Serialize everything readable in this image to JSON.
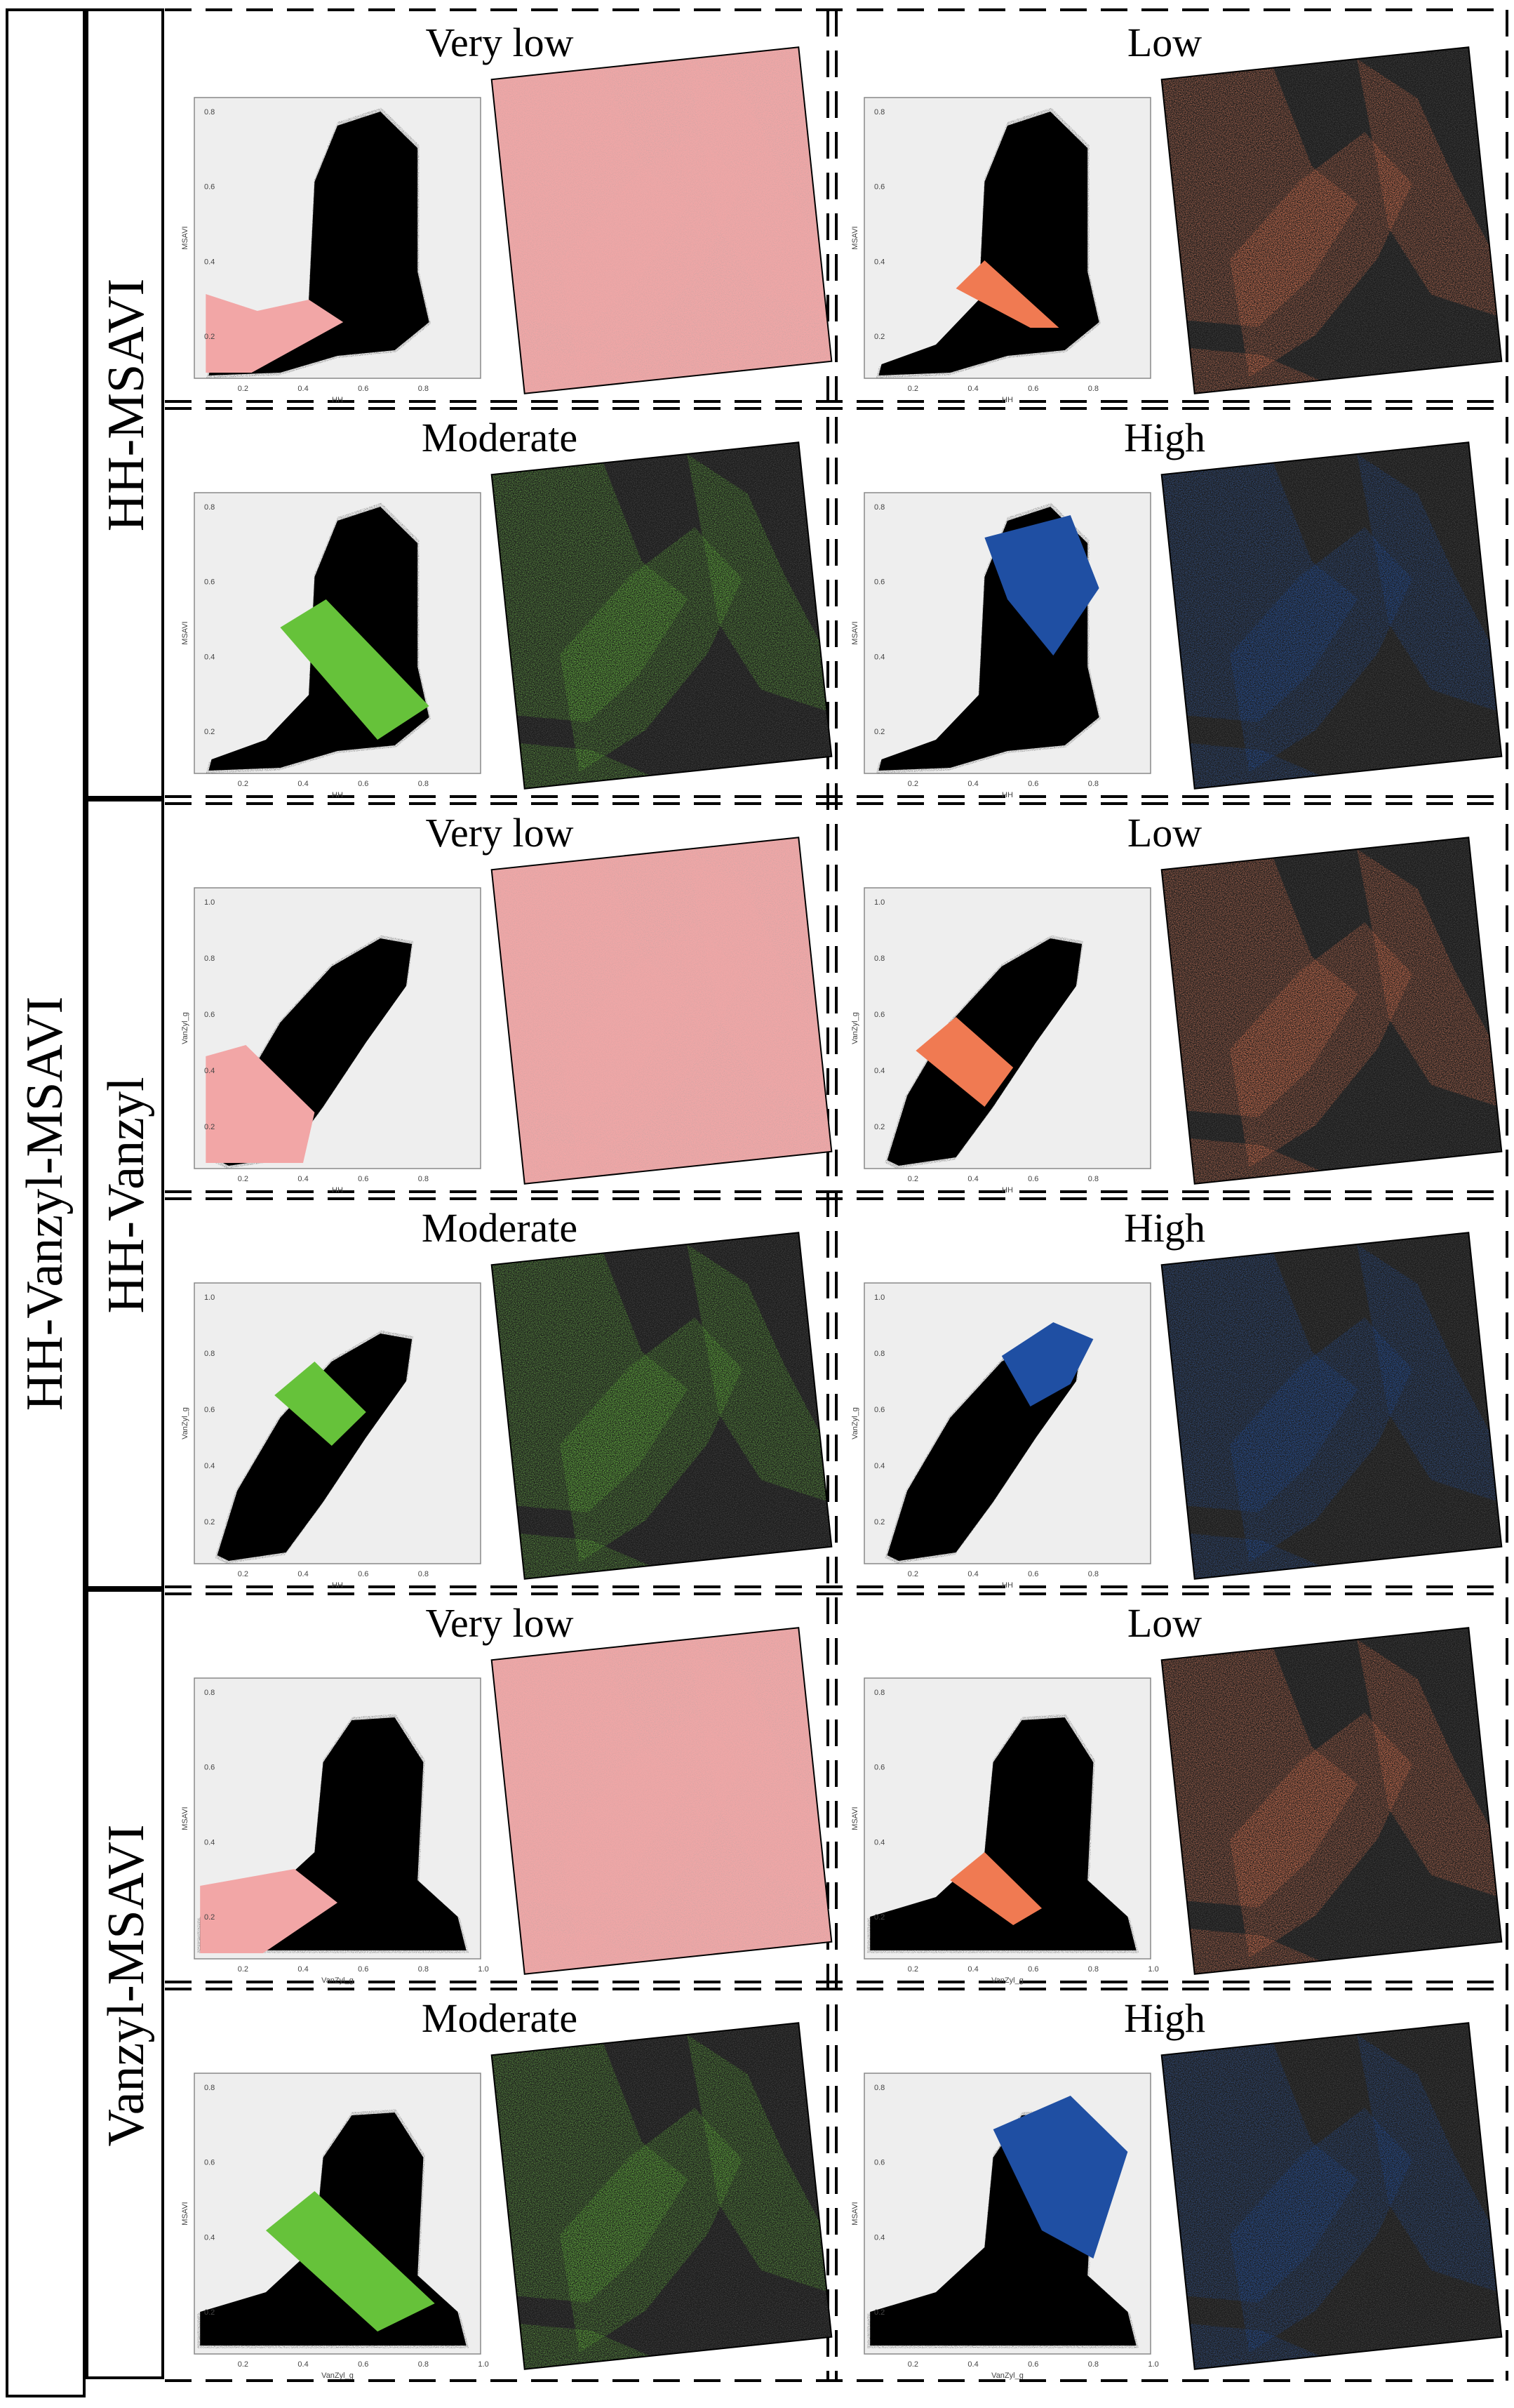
{
  "figure": {
    "outer_label": "HH-Vanzyl-MSAVI",
    "accent_colors": {
      "very_low": "#f2a6a6",
      "low": "#f07a52",
      "moderate": "#66c23a",
      "high": "#1f4fa3"
    },
    "groups": [
      {
        "label": "HH-MSAVI",
        "x_axis_label": "HH",
        "y_axis_label": "MSAVI",
        "x_ticks": [
          "0.2",
          "0.4",
          "0.6",
          "0.8"
        ],
        "y_ticks": [
          "0.2",
          "0.4",
          "0.6",
          "0.8"
        ],
        "panels": [
          {
            "title": "Very low",
            "class": "very_low"
          },
          {
            "title": "Low",
            "class": "low"
          },
          {
            "title": "Moderate",
            "class": "moderate"
          },
          {
            "title": "High",
            "class": "high"
          }
        ]
      },
      {
        "label": "HH-Vanzyl",
        "x_axis_label": "HH",
        "y_axis_label": "VanZyl_g",
        "x_ticks": [
          "0.2",
          "0.4",
          "0.6",
          "0.8"
        ],
        "y_ticks": [
          "0.2",
          "0.4",
          "0.6",
          "0.8",
          "1.0"
        ],
        "panels": [
          {
            "title": "Very low",
            "class": "very_low"
          },
          {
            "title": "Low",
            "class": "low"
          },
          {
            "title": "Moderate",
            "class": "moderate"
          },
          {
            "title": "High",
            "class": "high"
          }
        ]
      },
      {
        "label": "Vanzyl-MSAVI",
        "x_axis_label": "VanZyl_g",
        "y_axis_label": "MSAVI",
        "x_ticks": [
          "0.2",
          "0.4",
          "0.6",
          "0.8",
          "1.0"
        ],
        "y_ticks": [
          "0.2",
          "0.4",
          "0.6",
          "0.8"
        ],
        "panels": [
          {
            "title": "Very low",
            "class": "very_low"
          },
          {
            "title": "Low",
            "class": "low"
          },
          {
            "title": "Moderate",
            "class": "moderate"
          },
          {
            "title": "High",
            "class": "high"
          }
        ]
      }
    ]
  }
}
